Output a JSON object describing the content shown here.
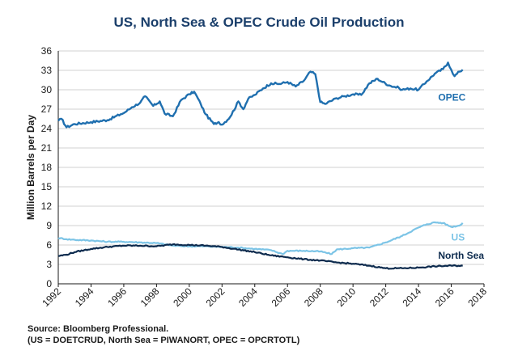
{
  "colors": {
    "opec": "#1f6faf",
    "us": "#7cc4e6",
    "north_sea": "#0d2b4e",
    "title": "#1b3f6b",
    "grid": "#d0d0d0"
  },
  "chart_data": {
    "type": "line",
    "title": "US, North Sea & OPEC Crude Oil Production",
    "ylabel": "Million Barrels per Day",
    "xlabel": "",
    "xlim": [
      1992,
      2018
    ],
    "ylim": [
      0,
      36
    ],
    "xticks": [
      "1992",
      "1994",
      "1996",
      "1998",
      "2000",
      "2002",
      "2004",
      "2006",
      "2008",
      "2010",
      "2012",
      "2014",
      "2016",
      "2018"
    ],
    "yticks": [
      "0",
      "3",
      "6",
      "9",
      "12",
      "15",
      "18",
      "21",
      "24",
      "27",
      "30",
      "33",
      "36"
    ],
    "grid": "horizontal",
    "series": [
      {
        "name": "OPEC",
        "color_key": "opec",
        "points": [
          [
            1992.0,
            25.2
          ],
          [
            1992.2,
            25.5
          ],
          [
            1992.5,
            24.2
          ],
          [
            1993.0,
            24.7
          ],
          [
            1994.0,
            25.0
          ],
          [
            1995.0,
            25.3
          ],
          [
            1995.8,
            26.2
          ],
          [
            1996.0,
            26.4
          ],
          [
            1996.5,
            27.3
          ],
          [
            1997.0,
            28.0
          ],
          [
            1997.3,
            29.0
          ],
          [
            1997.8,
            27.5
          ],
          [
            1998.2,
            28.2
          ],
          [
            1998.5,
            26.3
          ],
          [
            1999.0,
            25.9
          ],
          [
            1999.5,
            28.4
          ],
          [
            2000.0,
            29.3
          ],
          [
            2000.3,
            29.7
          ],
          [
            2000.7,
            27.8
          ],
          [
            2001.0,
            26.2
          ],
          [
            2001.5,
            24.7
          ],
          [
            2001.8,
            25.0
          ],
          [
            2002.0,
            24.6
          ],
          [
            2002.5,
            25.8
          ],
          [
            2003.0,
            28.2
          ],
          [
            2003.3,
            27.0
          ],
          [
            2003.6,
            28.6
          ],
          [
            2004.0,
            29.2
          ],
          [
            2004.5,
            30.2
          ],
          [
            2005.0,
            31.0
          ],
          [
            2005.5,
            30.9
          ],
          [
            2006.0,
            31.2
          ],
          [
            2006.5,
            30.5
          ],
          [
            2007.0,
            31.4
          ],
          [
            2007.4,
            32.8
          ],
          [
            2007.7,
            32.4
          ],
          [
            2008.0,
            28.1
          ],
          [
            2008.3,
            27.8
          ],
          [
            2009.0,
            28.7
          ],
          [
            2009.5,
            29.0
          ],
          [
            2010.0,
            29.3
          ],
          [
            2010.5,
            29.2
          ],
          [
            2011.0,
            31.0
          ],
          [
            2011.5,
            31.7
          ],
          [
            2011.8,
            31.2
          ],
          [
            2012.3,
            30.6
          ],
          [
            2012.8,
            30.3
          ],
          [
            2013.0,
            30.0
          ],
          [
            2013.5,
            30.2
          ],
          [
            2014.0,
            30.0
          ],
          [
            2014.5,
            31.3
          ],
          [
            2015.0,
            32.5
          ],
          [
            2015.5,
            33.2
          ],
          [
            2015.8,
            34.2
          ],
          [
            2016.0,
            33.1
          ],
          [
            2016.2,
            32.1
          ],
          [
            2016.5,
            32.8
          ],
          [
            2016.7,
            33.1
          ]
        ],
        "label": {
          "text": "OPEC",
          "x": 2015.2,
          "y": 28.3
        }
      },
      {
        "name": "US",
        "color_key": "us",
        "points": [
          [
            1992.0,
            7.1
          ],
          [
            1992.5,
            6.9
          ],
          [
            1993.0,
            6.8
          ],
          [
            1994.0,
            6.7
          ],
          [
            1995.0,
            6.5
          ],
          [
            1996.0,
            6.5
          ],
          [
            1997.0,
            6.4
          ],
          [
            1998.0,
            6.3
          ],
          [
            1999.0,
            5.9
          ],
          [
            2000.0,
            5.8
          ],
          [
            2001.0,
            5.8
          ],
          [
            2002.0,
            5.7
          ],
          [
            2003.0,
            5.6
          ],
          [
            2004.0,
            5.4
          ],
          [
            2005.0,
            5.2
          ],
          [
            2005.7,
            4.6
          ],
          [
            2006.0,
            5.1
          ],
          [
            2007.0,
            5.1
          ],
          [
            2008.0,
            5.0
          ],
          [
            2008.7,
            4.6
          ],
          [
            2009.0,
            5.3
          ],
          [
            2010.0,
            5.5
          ],
          [
            2011.0,
            5.6
          ],
          [
            2012.0,
            6.4
          ],
          [
            2013.0,
            7.4
          ],
          [
            2014.0,
            8.7
          ],
          [
            2014.5,
            9.2
          ],
          [
            2015.0,
            9.5
          ],
          [
            2015.5,
            9.4
          ],
          [
            2016.0,
            8.8
          ],
          [
            2016.5,
            9.0
          ],
          [
            2016.7,
            9.4
          ]
        ],
        "label": {
          "text": "US",
          "x": 2016.0,
          "y": 6.7
        }
      },
      {
        "name": "North Sea",
        "color_key": "north_sea",
        "points": [
          [
            1992.0,
            4.3
          ],
          [
            1992.5,
            4.5
          ],
          [
            1993.0,
            4.9
          ],
          [
            1994.0,
            5.4
          ],
          [
            1995.0,
            5.7
          ],
          [
            1996.0,
            5.9
          ],
          [
            1997.0,
            5.9
          ],
          [
            1998.0,
            5.8
          ],
          [
            1999.0,
            6.1
          ],
          [
            2000.0,
            6.0
          ],
          [
            2001.0,
            5.9
          ],
          [
            2002.0,
            5.7
          ],
          [
            2003.0,
            5.3
          ],
          [
            2004.0,
            4.9
          ],
          [
            2005.0,
            4.4
          ],
          [
            2006.0,
            4.1
          ],
          [
            2007.0,
            3.8
          ],
          [
            2008.0,
            3.6
          ],
          [
            2009.0,
            3.3
          ],
          [
            2010.0,
            3.1
          ],
          [
            2011.0,
            2.8
          ],
          [
            2012.0,
            2.4
          ],
          [
            2013.0,
            2.4
          ],
          [
            2014.0,
            2.5
          ],
          [
            2015.0,
            2.7
          ],
          [
            2016.0,
            2.8
          ],
          [
            2016.7,
            2.8
          ]
        ],
        "label": {
          "text": "North Sea",
          "x": 2015.2,
          "y": 3.9
        }
      }
    ]
  },
  "source": {
    "line1": "Source:  Bloomberg Professional.",
    "line2": "(US = DOETCRUD, North Sea = PIWANORT, OPEC = OPCRTOTL)"
  }
}
